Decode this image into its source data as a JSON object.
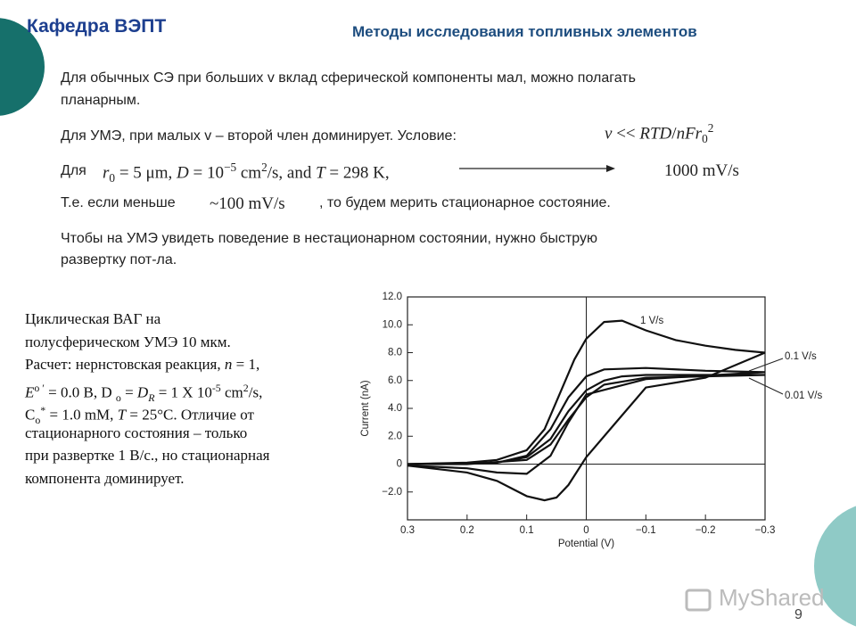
{
  "header": {
    "department": "Кафедра ВЭПТ",
    "course": "Методы исследования топливных элементов"
  },
  "slide_text": [
    "Для обычных СЭ  при больших  v вклад сферической компоненты мал, можно полагать",
    "планарным.",
    "Для УМЭ, при малых v – второй член доминирует. Условие:",
    [
      {
        "t": "v",
        "s": "i"
      },
      " << ",
      {
        "t": "RTD",
        "s": "i"
      },
      "/",
      {
        "t": "nFr",
        "s": "i"
      },
      {
        "t": "0",
        "s": "sub"
      },
      {
        "t": "2",
        "s": "sup"
      }
    ],
    "Для",
    [
      {
        "t": "r",
        "s": "i"
      },
      {
        "t": "0",
        "s": "sub"
      },
      " = 5 μm,  ",
      {
        "t": "D",
        "s": "i"
      },
      " = 10",
      {
        "t": "−5",
        "s": "sup"
      },
      " cm",
      {
        "t": "2",
        "s": "sup"
      },
      "/s, and ",
      {
        "t": "T",
        "s": "i"
      },
      " = 298 K,"
    ],
    "1000 mV/s",
    "Т.е. если меньше",
    "~100 mV/s",
    ", то будем мерить стационарное состояние.",
    "Чтобы на УМЭ увидеть поведение в нестационарном состоянии, нужно быструю",
    "развертку пот-ла."
  ],
  "caption_lines": [
    "Циклическая ВАГ на",
    "полусферическом УМЭ 10 мкм.",
    [
      "Расчет: нернстовская реакция, ",
      {
        "t": "n",
        "s": "i"
      },
      " = 1,"
    ],
    [
      {
        "t": "E",
        "s": "i"
      },
      {
        "t": "o ′",
        "s": "sup"
      },
      " = 0.0 B, D ",
      {
        "t": "o",
        "s": "sub"
      },
      " = ",
      {
        "t": "D",
        "s": "i"
      },
      {
        "t": "R",
        "s": "sub i"
      },
      " = 1 X 10",
      {
        "t": "-5",
        "s": "sup"
      },
      " cm",
      {
        "t": "2",
        "s": "sup"
      },
      "/s,"
    ],
    [
      "C",
      {
        "t": "o",
        "s": "sub"
      },
      {
        "t": "*",
        "s": "sup"
      },
      " = 1.0 mM, ",
      {
        "t": "T",
        "s": "i"
      },
      " = 25°C. Отличие от"
    ],
    "стационарного состояния – только",
    "при развертке  1 В/с., но стационарная",
    "компонента доминирует."
  ],
  "chart_data": {
    "type": "line",
    "xlabel": "Potential (V)",
    "ylabel": "Current (nA)",
    "xlim": [
      0.3,
      -0.3
    ],
    "xticks": [
      0.3,
      0.2,
      0.1,
      0,
      {
        "value": -0.1,
        "label": "−0.1"
      },
      {
        "value": -0.2,
        "label": "−0.2"
      },
      {
        "value": -0.3,
        "label": "−0.3"
      }
    ],
    "ylim": [
      -4,
      12
    ],
    "yticks": [
      {
        "value": 12,
        "label": "12.0"
      },
      {
        "value": 10,
        "label": "10.0"
      },
      {
        "value": 8,
        "label": "8.0"
      },
      {
        "value": 6,
        "label": "6.0"
      },
      {
        "value": 4,
        "label": "4.0"
      },
      {
        "value": 2,
        "label": "2.0"
      },
      0,
      {
        "value": -2,
        "label": "−2.0"
      }
    ],
    "series": [
      {
        "name": "1 V/s",
        "color": "#111111",
        "x": [
          0.3,
          0.2,
          0.15,
          0.1,
          0.07,
          0.05,
          0.02,
          0,
          -0.03,
          -0.06,
          -0.1,
          -0.15,
          -0.2,
          -0.25,
          -0.3,
          -0.2,
          -0.1,
          -0.05,
          0,
          0.03,
          0.05,
          0.07,
          0.1,
          0.15,
          0.2,
          0.3
        ],
        "values": [
          0,
          0.1,
          0.3,
          1,
          2.5,
          4.5,
          7.5,
          9,
          10.2,
          10.3,
          9.6,
          8.9,
          8.5,
          8.2,
          8.0,
          6.2,
          5.5,
          3,
          0.5,
          -1.5,
          -2.4,
          -2.6,
          -2.3,
          -1.2,
          -0.6,
          -0.1
        ]
      },
      {
        "name": "0.1 V/s",
        "color": "#111111",
        "x": [
          0.3,
          0.15,
          0.1,
          0.06,
          0.03,
          0,
          -0.03,
          -0.1,
          -0.2,
          -0.3,
          -0.1,
          0,
          0.03,
          0.06,
          0.1,
          0.15,
          0.2,
          0.3
        ],
        "values": [
          0,
          0.1,
          0.6,
          2.5,
          4.8,
          6.3,
          6.8,
          6.9,
          6.7,
          6.6,
          6.1,
          5,
          3,
          0.6,
          -0.7,
          -0.6,
          -0.3,
          -0.1
        ]
      },
      {
        "name": "0.01 V/s",
        "color": "#111111",
        "x": [
          0.3,
          0.15,
          0.1,
          0.06,
          0.03,
          0,
          -0.03,
          -0.06,
          -0.1,
          -0.2,
          -0.3,
          -0.1,
          -0.03,
          0,
          0.03,
          0.06,
          0.1,
          0.2,
          0.3
        ],
        "values": [
          0,
          0.1,
          0.5,
          1.8,
          3.8,
          5.3,
          6.0,
          6.3,
          6.4,
          6.4,
          6.4,
          6.2,
          5.7,
          4.8,
          3.2,
          1.4,
          0.3,
          0,
          0
        ]
      }
    ]
  },
  "watermark": "MyShared",
  "page_number": "9"
}
